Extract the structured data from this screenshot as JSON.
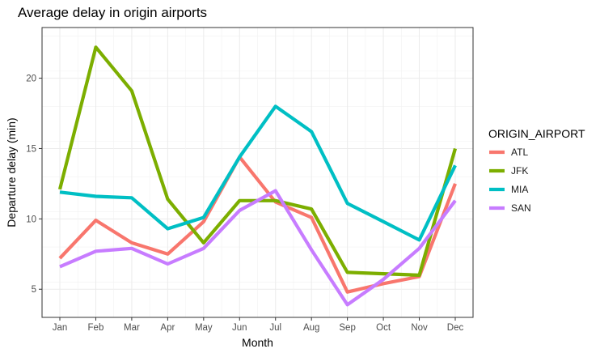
{
  "chart_data": {
    "type": "line",
    "title": "Average delay in origin airports",
    "xlabel": "Month",
    "ylabel": "Departure delay (min)",
    "categories": [
      "Jan",
      "Feb",
      "Mar",
      "Apr",
      "May",
      "Jun",
      "Jul",
      "Aug",
      "Sep",
      "Oct",
      "Nov",
      "Dec"
    ],
    "yticks": [
      5,
      10,
      15,
      20
    ],
    "ylim": [
      3,
      23.6
    ],
    "grid": true,
    "legend_title": "ORIGIN_AIRPORT",
    "legend_position": "right",
    "series": [
      {
        "name": "ATL",
        "color": "#F8766D",
        "values": [
          7.2,
          9.9,
          8.3,
          7.5,
          9.8,
          14.4,
          11.2,
          10.1,
          4.8,
          5.4,
          5.9,
          12.5
        ]
      },
      {
        "name": "JFK",
        "color": "#7CAE00",
        "values": [
          12.1,
          22.2,
          19.1,
          11.4,
          8.3,
          11.3,
          11.3,
          10.7,
          6.2,
          6.1,
          6.0,
          15.0
        ]
      },
      {
        "name": "MIA",
        "color": "#00BFC4",
        "values": [
          11.9,
          11.6,
          11.5,
          9.3,
          10.1,
          14.4,
          18.0,
          16.2,
          11.1,
          9.8,
          8.5,
          13.8
        ]
      },
      {
        "name": "SAN",
        "color": "#C77CFF",
        "values": [
          6.6,
          7.7,
          7.9,
          6.8,
          7.9,
          10.6,
          12.0,
          7.8,
          3.9,
          5.7,
          7.9,
          11.3
        ]
      }
    ]
  }
}
